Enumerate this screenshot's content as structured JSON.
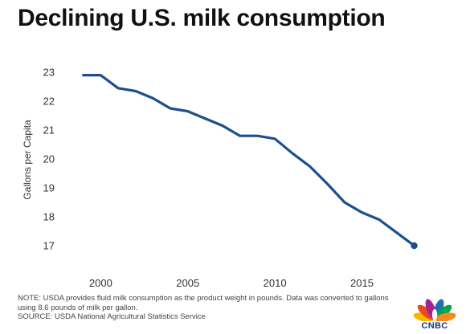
{
  "title": "Declining U.S. milk consumption",
  "chart_data": {
    "type": "line",
    "title": "Declining U.S. milk consumption",
    "xlabel": "",
    "ylabel": "Gallons per Capita",
    "x": [
      1999,
      2000,
      2001,
      2002,
      2003,
      2004,
      2005,
      2006,
      2007,
      2008,
      2009,
      2010,
      2011,
      2012,
      2013,
      2014,
      2015,
      2016,
      2017,
      2018
    ],
    "series": [
      {
        "values": [
          22.9,
          22.9,
          22.45,
          22.35,
          22.1,
          21.75,
          21.65,
          21.4,
          21.15,
          20.8,
          20.8,
          20.7,
          20.2,
          19.75,
          19.15,
          18.5,
          18.15,
          17.9,
          17.45,
          17.0
        ]
      }
    ],
    "xticks": [
      2000,
      2005,
      2010,
      2015
    ],
    "yticks": [
      17,
      18,
      19,
      20,
      21,
      22,
      23
    ],
    "xlim": [
      1998,
      2019.5
    ],
    "ylim": [
      16.5,
      23.5
    ],
    "grid": false,
    "line_color": "#1c4f8e"
  },
  "notes": {
    "line1": "NOTE: USDA provides fluid milk consumption as the product weight in pounds. Data was converted to gallons",
    "line2": "using 8.6 pounds of milk per gallon.",
    "line3": "SOURCE: USDA National Agricultural Statistics Service"
  },
  "logo": {
    "text": "CNBC",
    "colors": [
      "#f5b800",
      "#e8491d",
      "#a3238e",
      "#1f6fb2",
      "#00a550",
      "#f68b1f"
    ]
  }
}
